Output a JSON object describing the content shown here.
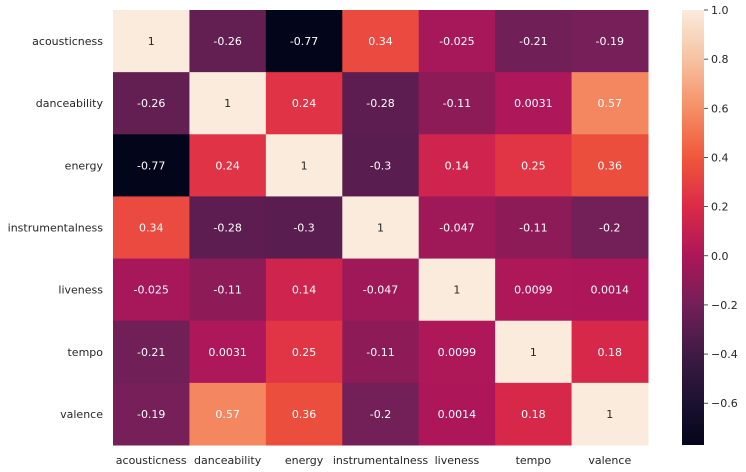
{
  "chart_data": {
    "type": "heatmap",
    "title": "",
    "xlabel": "",
    "ylabel": "",
    "rows": [
      "acousticness",
      "danceability",
      "energy",
      "instrumentalness",
      "liveness",
      "tempo",
      "valence"
    ],
    "columns": [
      "acousticness",
      "danceability",
      "energy",
      "instrumentalness",
      "liveness",
      "tempo",
      "valence"
    ],
    "values": [
      [
        1,
        -0.26,
        -0.77,
        0.34,
        -0.025,
        -0.21,
        -0.19
      ],
      [
        -0.26,
        1,
        0.24,
        -0.28,
        -0.11,
        0.0031,
        0.57
      ],
      [
        -0.77,
        0.24,
        1,
        -0.3,
        0.14,
        0.25,
        0.36
      ],
      [
        0.34,
        -0.28,
        -0.3,
        1,
        -0.047,
        -0.11,
        -0.2
      ],
      [
        -0.025,
        -0.11,
        0.14,
        -0.047,
        1,
        0.0099,
        0.0014
      ],
      [
        -0.21,
        0.0031,
        0.25,
        -0.11,
        0.0099,
        1,
        0.18
      ],
      [
        -0.19,
        0.57,
        0.36,
        -0.2,
        0.0014,
        0.18,
        1
      ]
    ],
    "colorbar": {
      "range": [
        -0.77,
        1.0
      ],
      "ticks": [
        1.0,
        0.8,
        0.6,
        0.4,
        0.2,
        0.0,
        -0.2,
        -0.4,
        -0.6
      ],
      "tick_labels": [
        "1.0",
        "0.8",
        "0.6",
        "0.4",
        "0.2",
        "0.0",
        "−0.2",
        "−0.4",
        "−0.6"
      ],
      "colormap": "rocket",
      "stops": [
        [
          -0.77,
          "#03051a"
        ],
        [
          -0.6,
          "#1c1130"
        ],
        [
          -0.4,
          "#3f1a45"
        ],
        [
          -0.2,
          "#731f58"
        ],
        [
          0.0,
          "#ad1759"
        ],
        [
          0.2,
          "#dc2a48"
        ],
        [
          0.4,
          "#f0573c"
        ],
        [
          0.6,
          "#f58f66"
        ],
        [
          0.8,
          "#f6c2a2"
        ],
        [
          1.0,
          "#faebdd"
        ]
      ]
    }
  }
}
